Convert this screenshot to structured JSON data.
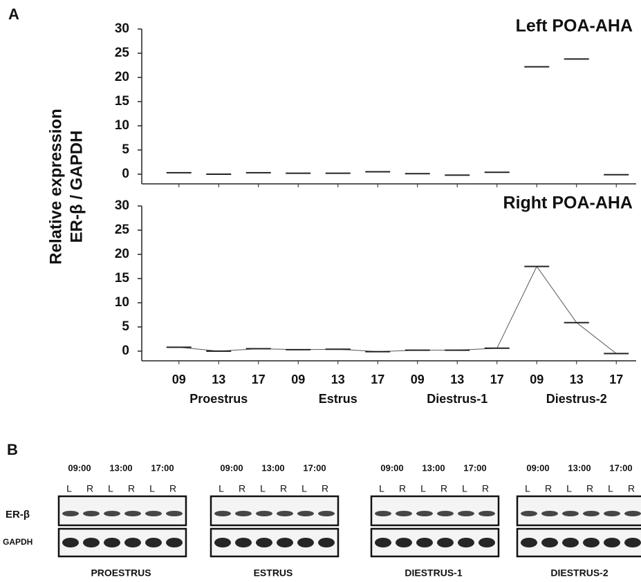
{
  "panel_labels": [
    "A",
    "B"
  ],
  "y_axis_label": [
    "Relative expression",
    "ER-β / GAPDH"
  ],
  "chart_data": [
    {
      "type": "scatter",
      "title": "Left POA-AHA",
      "categories": [
        null,
        null,
        null,
        null,
        null,
        null,
        null,
        null,
        null,
        null,
        null,
        null
      ],
      "values": [
        0.3,
        0,
        0.3,
        0.2,
        0.2,
        0.5,
        0.1,
        -0.2,
        0.4,
        22.2,
        23.8,
        -0.1
      ],
      "color": "#222",
      "ylim": [
        -2,
        30
      ],
      "yticks": [
        0,
        5,
        10,
        15,
        20,
        25,
        30
      ]
    },
    {
      "type": "line",
      "title": "Right POA-AHA",
      "categories": [
        "09",
        "13",
        "17",
        "09",
        "13",
        "17",
        "09",
        "13",
        "17",
        "09",
        "13",
        "17"
      ],
      "group_labels": [
        "Proestrus",
        "Estrus",
        "Diestrus-1",
        "Diestrus-2"
      ],
      "values": [
        0.8,
        0,
        0.5,
        0.3,
        0.4,
        -0.1,
        0.2,
        0.2,
        0.6,
        17.5,
        5.9,
        -0.5
      ],
      "color": "#222",
      "ylim": [
        -2,
        30
      ],
      "yticks": [
        0,
        5,
        10,
        15,
        20,
        25,
        30
      ]
    }
  ],
  "blot_rows": [
    "ER-β",
    "GAPDH"
  ],
  "blots": [
    {
      "name": "PROESTRUS",
      "times": [
        "09:00",
        "13:00",
        "17:00"
      ],
      "lanes": [
        "L",
        "R",
        "L",
        "R",
        "L",
        "R"
      ]
    },
    {
      "name": "ESTRUS",
      "times": [
        "09:00",
        "13:00",
        "17:00"
      ],
      "lanes": [
        "L",
        "R",
        "L",
        "R",
        "L",
        "R"
      ]
    },
    {
      "name": "DIESTRUS-1",
      "times": [
        "09:00",
        "13:00",
        "17:00"
      ],
      "lanes": [
        "L",
        "R",
        "L",
        "R",
        "L",
        "R"
      ]
    },
    {
      "name": "DIESTRUS-2",
      "times": [
        "09:00",
        "13:00",
        "17:00"
      ],
      "lanes": [
        "L",
        "R",
        "L",
        "R",
        "L",
        "R"
      ]
    }
  ]
}
